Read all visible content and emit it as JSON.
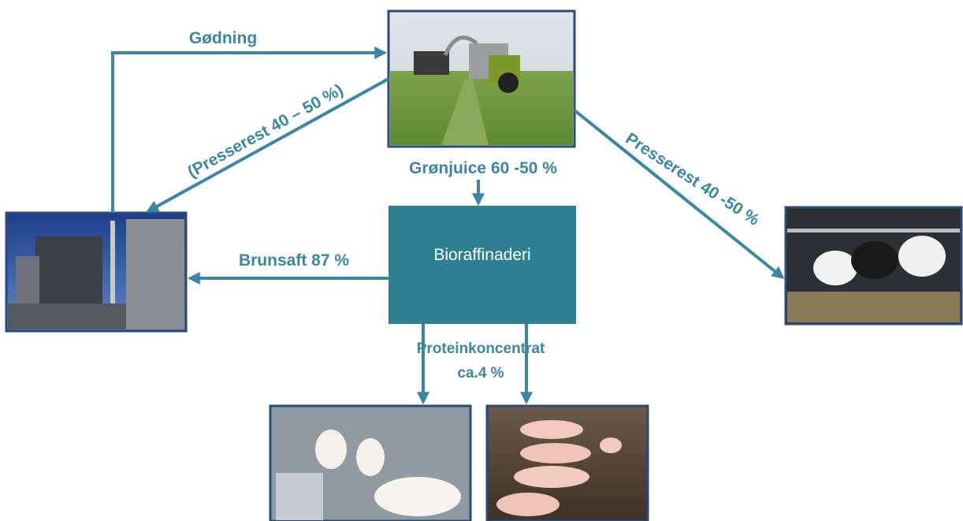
{
  "center": {
    "label": "Bioraffinaderi"
  },
  "edges": [
    {
      "label": "Gødning"
    },
    {
      "label": "(Presserest 40 – 50 %)"
    },
    {
      "label": "Grønjuice 60 -50 %"
    },
    {
      "label": "Presserest 40 -50 %"
    },
    {
      "label": "Brunsaft 87 %"
    },
    {
      "lines": [
        "Proteinkoncentrat",
        "ca.4 %"
      ]
    }
  ]
}
